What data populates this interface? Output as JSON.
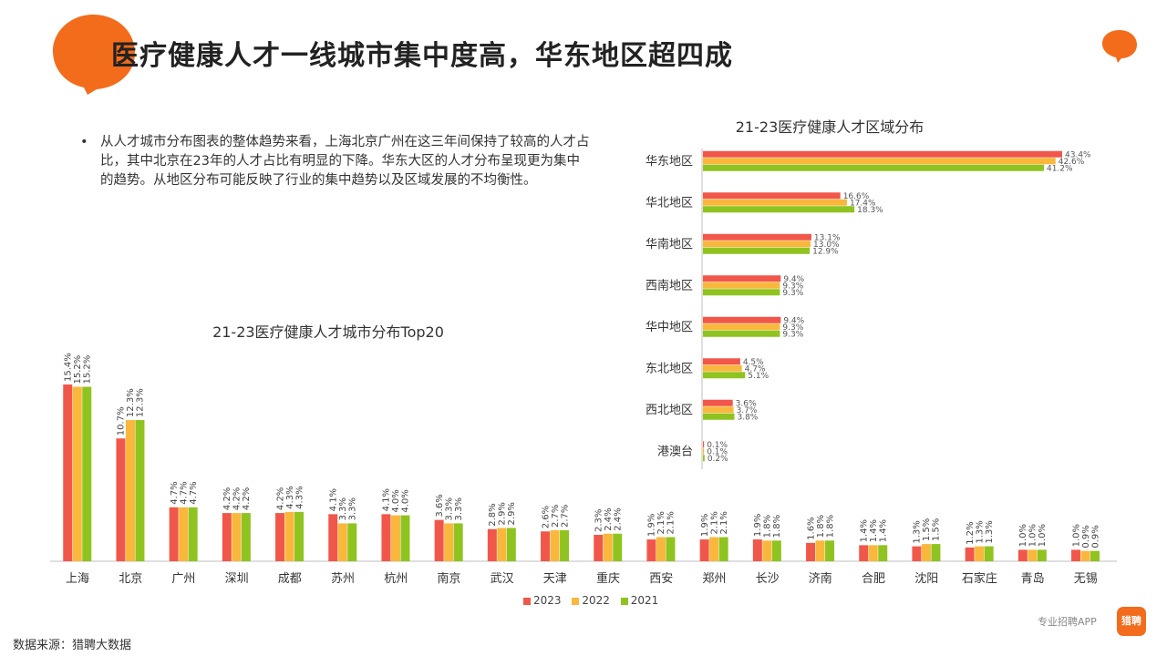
{
  "header": {
    "title": "医疗健康人才一线城市集中度高，华东地区超四成"
  },
  "bullet": {
    "marker": "•",
    "text": "从人才城市分布图表的整体趋势来看，上海北京广州在这三年间保持了较高的人才占比，其中北京在23年的人才占比有明显的下降。华东大区的人才分布呈现更为集中的趋势。从地区分布可能反映了行业的集中趋势以及区域发展的不均衡性。"
  },
  "footer": {
    "source": "数据来源：猎聘大数据",
    "brand": "专业招聘APP",
    "logo_text": "猎聘"
  },
  "colors": {
    "orange": "#f26c1c",
    "s2023": "#f0574a",
    "s2022": "#f9b73c",
    "s2021": "#8fc31f"
  },
  "chart_data": [
    {
      "type": "bar",
      "orientation": "horizontal",
      "title": "21-23医疗健康人才区域分布",
      "categories": [
        "华东地区",
        "华北地区",
        "华南地区",
        "西南地区",
        "华中地区",
        "东北地区",
        "西北地区",
        "港澳台"
      ],
      "series": [
        {
          "name": "2023",
          "values": [
            43.4,
            16.6,
            13.1,
            9.4,
            9.4,
            4.5,
            3.6,
            0.1
          ],
          "labels": [
            "43.4%",
            "16.6%",
            "13.1%",
            "9.4%",
            "9.4%",
            "4.5%",
            "3.6%",
            "0.1%"
          ]
        },
        {
          "name": "2022",
          "values": [
            42.6,
            17.4,
            13.0,
            9.3,
            9.3,
            4.7,
            3.7,
            0.1
          ],
          "labels": [
            "42.6%",
            "17.4%",
            "13.0%",
            "9.3%",
            "9.3%",
            "4.7%",
            "3.7%",
            "0.1%"
          ]
        },
        {
          "name": "2021",
          "values": [
            41.2,
            18.3,
            12.9,
            9.3,
            9.3,
            5.1,
            3.8,
            0.2
          ],
          "labels": [
            "41.2%",
            "18.3%",
            "12.9%",
            "9.3%",
            "9.3%",
            "5.1%",
            "3.8%",
            "0.2%"
          ]
        }
      ],
      "unit": "%",
      "xlim": [
        0,
        43.4
      ]
    },
    {
      "type": "bar",
      "orientation": "vertical",
      "title": "21-23医疗健康人才城市分布Top20",
      "categories": [
        "上海",
        "北京",
        "广州",
        "深圳",
        "成都",
        "苏州",
        "杭州",
        "南京",
        "武汉",
        "天津",
        "重庆",
        "西安",
        "郑州",
        "长沙",
        "济南",
        "合肥",
        "沈阳",
        "石家庄",
        "青岛",
        "无锡"
      ],
      "series": [
        {
          "name": "2023",
          "values": [
            15.4,
            10.7,
            4.7,
            4.2,
            4.2,
            4.1,
            4.1,
            3.6,
            2.8,
            2.6,
            2.3,
            1.9,
            1.9,
            1.9,
            1.6,
            1.4,
            1.3,
            1.2,
            1.0,
            1.0
          ],
          "labels": [
            "15.4%",
            "10.7%",
            "4.7%",
            "4.2%",
            "4.2%",
            "4.1%",
            "4.1%",
            "3.6%",
            "2.8%",
            "2.6%",
            "2.3%",
            "1.9%",
            "1.9%",
            "1.9%",
            "1.6%",
            "1.4%",
            "1.3%",
            "1.2%",
            "1.0%",
            "1.0%"
          ]
        },
        {
          "name": "2022",
          "values": [
            15.2,
            12.3,
            4.7,
            4.2,
            4.3,
            3.3,
            4.0,
            3.3,
            2.9,
            2.7,
            2.4,
            2.1,
            2.1,
            1.8,
            1.8,
            1.4,
            1.5,
            1.3,
            1.0,
            0.9
          ],
          "labels": [
            "15.2%",
            "12.3%",
            "4.7%",
            "4.2%",
            "4.3%",
            "3.3%",
            "4.0%",
            "3.3%",
            "2.9%",
            "2.7%",
            "2.4%",
            "2.1%",
            "2.1%",
            "1.8%",
            "1.8%",
            "1.4%",
            "1.5%",
            "1.3%",
            "1.0%",
            "0.9%"
          ]
        },
        {
          "name": "2021",
          "values": [
            15.2,
            12.3,
            4.7,
            4.2,
            4.3,
            3.3,
            4.0,
            3.3,
            2.9,
            2.7,
            2.4,
            2.1,
            2.1,
            1.8,
            1.8,
            1.4,
            1.5,
            1.3,
            1.0,
            0.9
          ],
          "labels": [
            "15.2%",
            "12.3%",
            "4.7%",
            "4.2%",
            "4.3%",
            "3.3%",
            "4.0%",
            "3.3%",
            "2.9%",
            "2.7%",
            "2.4%",
            "2.1%",
            "2.1%",
            "1.8%",
            "1.8%",
            "1.4%",
            "1.5%",
            "1.3%",
            "1.0%",
            "0.9%"
          ]
        }
      ],
      "unit": "%",
      "ylim": [
        0,
        15.4
      ],
      "legend": {
        "position": "bottom",
        "entries": [
          "2023",
          "2022",
          "2021"
        ]
      }
    }
  ]
}
